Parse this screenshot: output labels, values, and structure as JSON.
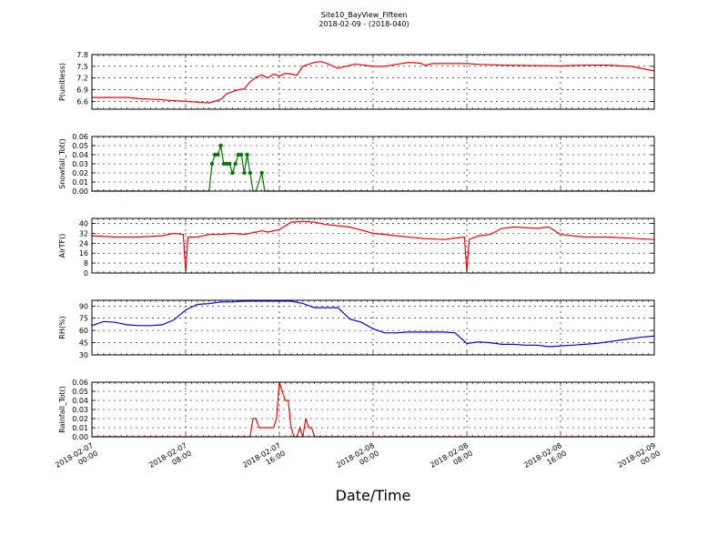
{
  "figure": {
    "title": "Site10_BayView_Fifteen",
    "subtitle": "2018-02-09 - (2018-040)",
    "xlabel": "Date/Time",
    "x_ticks": [
      {
        "line1": "2018-02-07",
        "line2": "00:00"
      },
      {
        "line1": "2018-02-07",
        "line2": "08:00"
      },
      {
        "line1": "2018-02-07",
        "line2": "16:00"
      },
      {
        "line1": "2018-02-08",
        "line2": "00:00"
      },
      {
        "line1": "2018-02-08",
        "line2": "08:00"
      },
      {
        "line1": "2018-02-08",
        "line2": "16:00"
      },
      {
        "line1": "2018-02-09",
        "line2": "00:00"
      }
    ]
  },
  "chart_data": [
    {
      "type": "line",
      "ylabel": "P(unitless)",
      "ylim": [
        6.4,
        7.8
      ],
      "yticks": [
        "6.6",
        "6.9",
        "7.2",
        "7.5",
        "7.8"
      ],
      "color": "#ff0000",
      "markers": false,
      "grid": true,
      "x": [
        0,
        3,
        4,
        6,
        7,
        8,
        9.5,
        10,
        11,
        11.5,
        12,
        12.5,
        13,
        13.5,
        14,
        14.5,
        15,
        15.5,
        16,
        16.5,
        17,
        17.5,
        18,
        18.5,
        19,
        19.5,
        20,
        21,
        22,
        22.5,
        24,
        25,
        26,
        27,
        28,
        28.5,
        29,
        30,
        32,
        33,
        35,
        40,
        42,
        44,
        46,
        48
      ],
      "values": [
        6.7,
        6.7,
        6.67,
        6.64,
        6.62,
        6.6,
        6.57,
        6.56,
        6.65,
        6.8,
        6.85,
        6.9,
        6.92,
        7.1,
        7.22,
        7.28,
        7.2,
        7.3,
        7.25,
        7.32,
        7.3,
        7.27,
        7.5,
        7.55,
        7.6,
        7.62,
        7.58,
        7.45,
        7.52,
        7.56,
        7.5,
        7.5,
        7.55,
        7.6,
        7.58,
        7.52,
        7.57,
        7.57,
        7.57,
        7.55,
        7.53,
        7.51,
        7.53,
        7.53,
        7.5,
        7.38
      ]
    },
    {
      "type": "line",
      "ylabel": "Snowfall_Tot()",
      "ylim": [
        0,
        0.06
      ],
      "yticks": [
        "0.00",
        "0.01",
        "0.02",
        "0.03",
        "0.04",
        "0.05",
        "0.06"
      ],
      "color": "#007a00",
      "markers": true,
      "grid": true,
      "x": [
        0,
        10,
        10.25,
        10.5,
        10.75,
        11,
        11.25,
        11.5,
        11.75,
        12,
        12.25,
        12.5,
        12.75,
        13,
        13.25,
        13.5,
        13.75,
        14,
        14.5,
        14.75,
        15,
        15,
        48
      ],
      "values": [
        0,
        0,
        0.03,
        0.04,
        0.04,
        0.05,
        0.03,
        0.03,
        0.03,
        0.02,
        0.03,
        0.04,
        0.04,
        0.02,
        0.04,
        0.02,
        0,
        0,
        0.02,
        0,
        0,
        0,
        0
      ]
    },
    {
      "type": "line",
      "ylabel": "AirTF()",
      "ylim": [
        0,
        44
      ],
      "yticks": [
        "0",
        "8",
        "16",
        "24",
        "32",
        "40"
      ],
      "color": "#ff0000",
      "markers": false,
      "grid": true,
      "x": [
        0,
        2,
        4,
        6,
        7,
        7.8,
        8,
        8.2,
        9,
        10,
        11,
        12,
        13,
        14,
        14.5,
        15,
        16,
        17,
        18,
        19,
        20,
        22,
        24,
        26,
        28,
        30,
        31.8,
        32,
        32.2,
        33,
        34,
        35,
        36,
        38,
        39,
        40,
        42,
        44,
        46,
        48
      ],
      "values": [
        30,
        29,
        29,
        30,
        32,
        31,
        1,
        29,
        29,
        31,
        31,
        32,
        31,
        33,
        34,
        33,
        35,
        41,
        41.5,
        41,
        39,
        37,
        32,
        30,
        28,
        27,
        29,
        1,
        27,
        30,
        31,
        36,
        37,
        36,
        37,
        31,
        29,
        29,
        28,
        27
      ]
    },
    {
      "type": "line",
      "ylabel": "RH(%)",
      "ylim": [
        30,
        97
      ],
      "yticks": [
        "30",
        "45",
        "60",
        "75",
        "90"
      ],
      "color": "#0000ff",
      "markers": false,
      "grid": true,
      "x": [
        0,
        1,
        2,
        3,
        4,
        5,
        6,
        7,
        8,
        9,
        10,
        11,
        12,
        13,
        14,
        15,
        16,
        17,
        18,
        19,
        20,
        21,
        22,
        23,
        24,
        25,
        26,
        27,
        28,
        29,
        30,
        31,
        32,
        33,
        34,
        35,
        36,
        37,
        38,
        39,
        40,
        41,
        42,
        43,
        44,
        45,
        46,
        47,
        48
      ],
      "values": [
        66,
        71,
        70,
        67,
        66,
        66,
        67,
        73,
        85,
        92,
        93,
        95,
        95,
        96,
        96,
        96,
        96,
        96,
        93,
        88,
        88,
        88,
        74,
        70,
        62,
        57,
        57,
        58,
        58,
        58,
        58,
        57,
        44,
        46,
        45,
        43,
        43,
        42,
        42,
        40,
        41,
        42,
        43,
        44,
        46,
        48,
        50,
        52,
        53
      ]
    },
    {
      "type": "line",
      "ylabel": "Rainfall_Tot()",
      "ylim": [
        0,
        0.06
      ],
      "yticks": [
        "0.00",
        "0.01",
        "0.02",
        "0.03",
        "0.04",
        "0.05",
        "0.06"
      ],
      "color": "#ff0000",
      "markers": false,
      "grid": true,
      "x": [
        0,
        13.5,
        13.75,
        14,
        14.25,
        14.5,
        15,
        15.5,
        15.75,
        16,
        16.25,
        16.5,
        16.75,
        17,
        17.25,
        17.5,
        17.75,
        18,
        18.25,
        18.5,
        18.75,
        19,
        19.25,
        19.5,
        19.75,
        20,
        48
      ],
      "values": [
        0,
        0,
        0.02,
        0.02,
        0.01,
        0.01,
        0.01,
        0.01,
        0.02,
        0.06,
        0.05,
        0.04,
        0.04,
        0.01,
        0,
        0,
        0.01,
        0,
        0.02,
        0.01,
        0.01,
        0,
        0,
        0,
        0,
        0,
        0
      ]
    }
  ]
}
